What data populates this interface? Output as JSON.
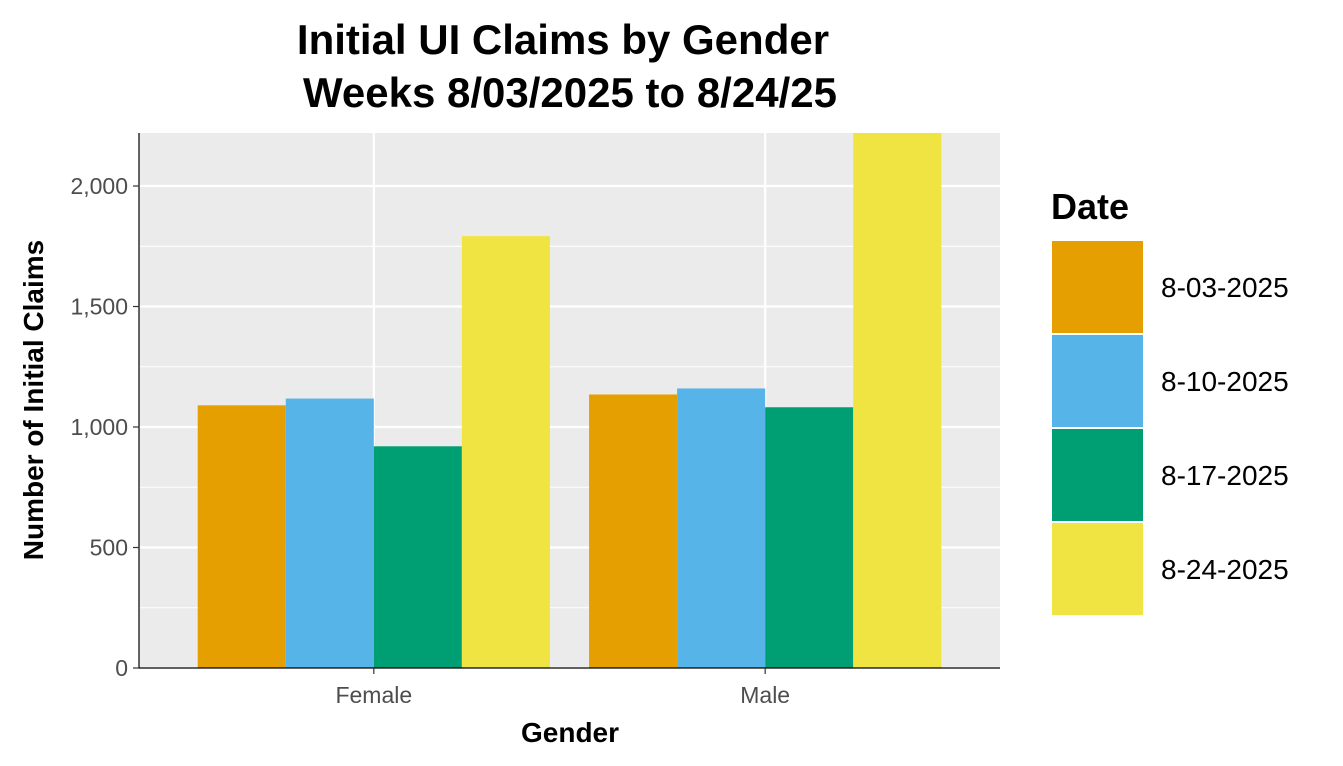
{
  "chart_data": {
    "type": "bar",
    "title_line1": "Initial UI Claims by Gender",
    "title_line2": "Weeks  8/03/2025 to 8/24/25",
    "xlabel": "Gender",
    "ylabel": "Number of Initial Claims",
    "categories": [
      "Female",
      "Male"
    ],
    "ylim": [
      0,
      2220
    ],
    "yticks": [
      0,
      500,
      1000,
      1500,
      2000
    ],
    "ytick_labels": [
      "0",
      "500",
      "1,000",
      "1,500",
      "2,000"
    ],
    "legend_title": "Date",
    "legend_position": "right",
    "grid": true,
    "series": [
      {
        "name": "8-03-2025",
        "color": "#E69F00",
        "values": [
          1090,
          1135
        ]
      },
      {
        "name": "8-10-2025",
        "color": "#56B4E9",
        "values": [
          1118,
          1160
        ]
      },
      {
        "name": "8-17-2025",
        "color": "#009E73",
        "values": [
          920,
          1082
        ]
      },
      {
        "name": "8-24-2025",
        "color": "#F0E442",
        "values": [
          1792,
          2225
        ]
      }
    ]
  }
}
